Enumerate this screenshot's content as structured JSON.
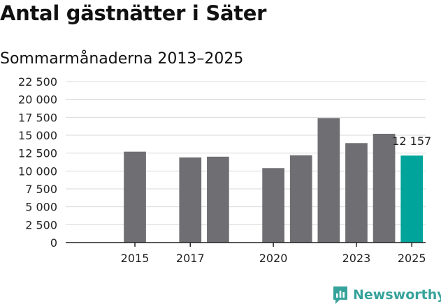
{
  "header": {
    "title": "Antal gästnätter i Säter",
    "subtitle": "Sommarmånaderna 2013–2025"
  },
  "brand": {
    "name": "Newsworthy"
  },
  "colors": {
    "bar": "#6f6e72",
    "highlight": "#00a49a",
    "grid": "#d9d9d9",
    "axis": "#222222",
    "brand": "#36a39b"
  },
  "chart_data": {
    "type": "bar",
    "categories": [
      "2013",
      "2014",
      "2015",
      "2016",
      "2017",
      "2018",
      "2019",
      "2020",
      "2021",
      "2022",
      "2023",
      "2024",
      "2025"
    ],
    "values": [
      null,
      null,
      12700,
      null,
      11900,
      12000,
      null,
      10400,
      12200,
      17400,
      13900,
      15200,
      12157
    ],
    "highlight_category": "2025",
    "data_labels": [
      {
        "category": "2025",
        "text": "12 157"
      }
    ],
    "x_tick_labels": [
      "2015",
      "2017",
      "2020",
      "2023",
      "2025"
    ],
    "y_ticks": [
      0,
      2500,
      5000,
      7500,
      10000,
      12500,
      15000,
      17500,
      20000,
      22500
    ],
    "y_tick_labels": [
      "0",
      "2 500",
      "5 000",
      "7 500",
      "10 000",
      "12 500",
      "15 000",
      "17 500",
      "20 000",
      "22 500"
    ],
    "ylim": [
      0,
      22500
    ],
    "grid": true,
    "xlabel": "",
    "ylabel": ""
  }
}
